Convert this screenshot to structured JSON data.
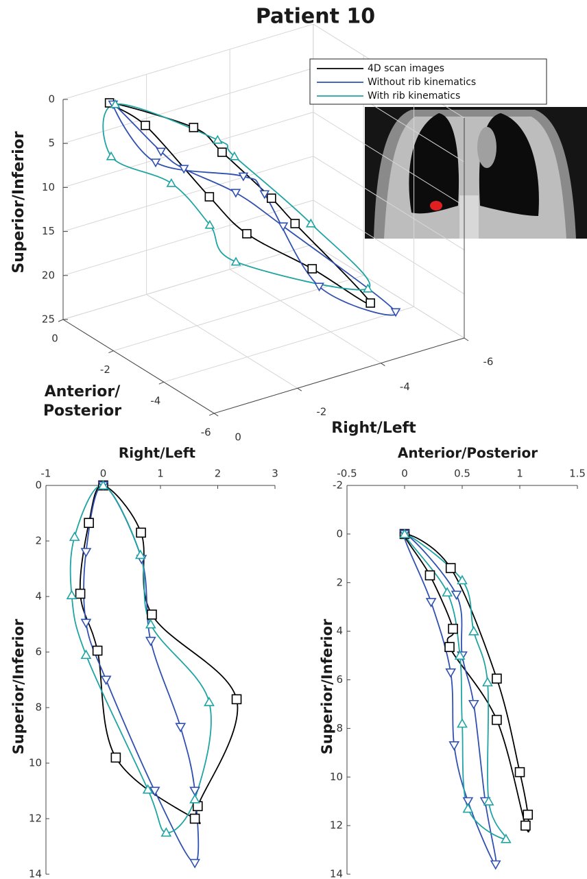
{
  "chart_data": [
    {
      "type": "line3d",
      "title": "Patient 10",
      "xlabel": "Right/Left",
      "ylabel": [
        "Anterior/",
        "Posterior"
      ],
      "zlabel": "Superior/Inferior",
      "xlim": [
        -6,
        0
      ],
      "ylim": [
        -6,
        0
      ],
      "zlim": [
        0,
        25
      ],
      "xticks": [
        0,
        -2,
        -4,
        -6
      ],
      "yticks": [
        0,
        -2,
        -4,
        -6
      ],
      "zticks": [
        0,
        5,
        10,
        15,
        20,
        25
      ],
      "grid": true,
      "legend": "upper right",
      "series": [
        {
          "name": "4D scan images",
          "color": "#000000",
          "marker": "square",
          "x": [
            -0.66,
            -2.11,
            -3.21,
            -4.14,
            -4.64,
            -4.89,
            -4.2,
            -2.91,
            -2.35,
            -1.34
          ],
          "y": [
            -0.75,
            -1.69,
            -1.0,
            -1.42,
            -1.53,
            -4.11,
            -2.94,
            -2.48,
            -1.92,
            -1.05
          ],
          "z": [
            0,
            3.2,
            8.8,
            14.6,
            18,
            22.8,
            20,
            15,
            11,
            3
          ]
        },
        {
          "name": "Without rib kinematics",
          "color": "#3050b0",
          "marker": "triangle-down",
          "x": [
            -0.68,
            -1.37,
            -1.98,
            -3.11,
            -4.15,
            -5.34,
            -3.85,
            -3.77,
            -3.43,
            -1.23
          ],
          "y": [
            -0.86,
            -1.62,
            -1.52,
            -1.71,
            -1.87,
            -4.37,
            -3.8,
            -1.76,
            -1.48,
            -1.64
          ],
          "z": [
            0,
            5,
            8,
            12,
            17,
            24,
            20,
            13,
            11,
            6
          ]
        },
        {
          "name": "With rib kinematics",
          "color": "#1fa3a3",
          "marker": "triangle-up",
          "x": [
            -0.72,
            -2.36,
            -2.89,
            -4.21,
            -5.04,
            -2.92,
            -2.54,
            -1.86,
            -0.67
          ],
          "y": [
            -0.88,
            -2.23,
            -2.02,
            -2.87,
            -3.76,
            -2.03,
            -1.62,
            -1.22,
            -0.8
          ],
          "z": [
            0,
            4,
            7,
            15,
            22,
            19,
            15,
            10,
            6
          ]
        }
      ]
    },
    {
      "type": "loop",
      "xlabel": "Right/Left",
      "ylabel": "Superior/Inferior",
      "xlim": [
        -1,
        3
      ],
      "ylim": [
        0,
        14
      ],
      "xticks": [
        -1,
        0,
        1,
        2,
        3
      ],
      "yticks": [
        0,
        2,
        4,
        6,
        8,
        10,
        12,
        14
      ],
      "y_reversed": true,
      "series": [
        {
          "color": "#000000",
          "marker": "square",
          "x": [
            0,
            0.66,
            0.85,
            2.33,
            1.65,
            1.6,
            0.22,
            -0.1,
            -0.4,
            -0.25
          ],
          "values": [
            0,
            1.7,
            4.65,
            7.7,
            11.55,
            12,
            9.8,
            5.95,
            3.9,
            1.35
          ]
        },
        {
          "color": "#3050b0",
          "marker": "triangle-down",
          "x": [
            0,
            0.67,
            0.83,
            1.35,
            1.6,
            1.6,
            0.9,
            0.05,
            -0.3,
            -0.3
          ],
          "values": [
            0,
            2.65,
            5.6,
            8.7,
            11,
            13.6,
            11,
            7,
            4.95,
            2.4
          ]
        },
        {
          "color": "#1fa3a3",
          "marker": "triangle-up",
          "x": [
            0,
            0.65,
            0.83,
            1.85,
            1.6,
            1.1,
            0.78,
            -0.3,
            -0.55,
            -0.5
          ],
          "values": [
            0,
            2.5,
            5,
            7.8,
            11.3,
            12.5,
            10.95,
            6.1,
            3.95,
            1.85
          ]
        }
      ]
    },
    {
      "type": "loop",
      "xlabel": "Anterior/Posterior",
      "ylabel": "Superior/Inferior",
      "xlim": [
        -0.5,
        1.5
      ],
      "ylim": [
        -2,
        14
      ],
      "xticks": [
        -0.5,
        0,
        0.5,
        1,
        1.5
      ],
      "yticks": [
        -2,
        0,
        2,
        4,
        6,
        8,
        10,
        12,
        14
      ],
      "y_reversed": true,
      "series": [
        {
          "color": "#000000",
          "marker": "square",
          "x": [
            0,
            0.4,
            0.8,
            1.0,
            1.07,
            1.05,
            0.8,
            0.39,
            0.42,
            0.22
          ],
          "values": [
            0,
            1.4,
            5.95,
            9.8,
            11.55,
            12,
            7.65,
            4.65,
            3.9,
            1.7
          ]
        },
        {
          "color": "#3050b0",
          "marker": "triangle-down",
          "x": [
            0,
            0.45,
            0.5,
            0.6,
            0.7,
            0.79,
            0.55,
            0.43,
            0.4,
            0.23
          ],
          "values": [
            0,
            2.5,
            5,
            7,
            11,
            13.6,
            11,
            8.7,
            5.7,
            2.8
          ]
        },
        {
          "color": "#1fa3a3",
          "marker": "triangle-up",
          "x": [
            0,
            0.5,
            0.6,
            0.72,
            0.73,
            0.88,
            0.55,
            0.5,
            0.48,
            0.37
          ],
          "values": [
            0,
            1.9,
            4,
            6.1,
            11,
            12.55,
            11.3,
            7.8,
            5,
            2.4
          ]
        }
      ]
    }
  ]
}
